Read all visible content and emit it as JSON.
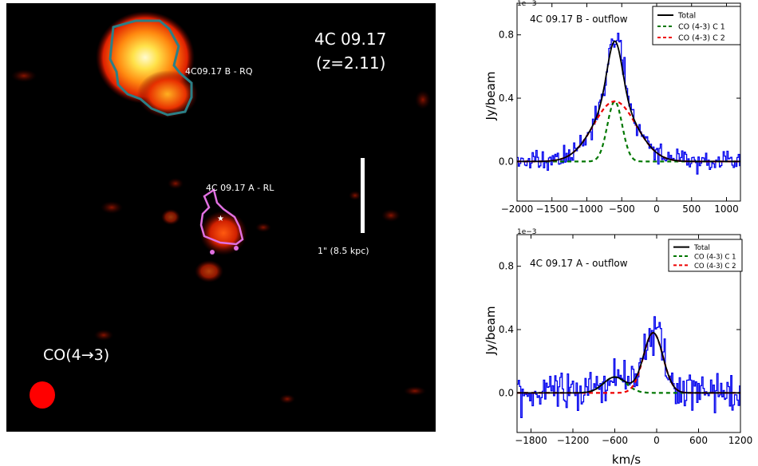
{
  "map": {
    "title_line1": "4C 09.17",
    "title_line2": "(z=2.11)",
    "label_b": "4C09.17 B - RQ",
    "label_a": "4C 09.17 A - RL",
    "scale_label": "1\" (8.5 kpc)",
    "line_label": "CO(4→3)",
    "colors": {
      "background": "#000000",
      "contour_b": "#2b7f86",
      "contour_a": "#e070e0",
      "beam": "#ff0000"
    }
  },
  "spectra": [
    {
      "panel": "top",
      "annotation": "4C 09.17 B - outflow",
      "exponent": "1e−3",
      "ylabel": "Jy/beam",
      "xlabel": "",
      "xticks": [
        "−2000",
        "−1500",
        "−1000",
        "−500",
        "0",
        "500",
        "1000"
      ],
      "yticks": [
        "0.0",
        "0.4",
        "0.8"
      ],
      "legend": [
        "Total",
        "CO (4-3) C 1",
        "CO (4-3) C 2"
      ]
    },
    {
      "panel": "bottom",
      "annotation": "4C 09.17 A - outflow",
      "exponent": "1e−3",
      "ylabel": "Jy/beam",
      "xlabel": "km/s",
      "xticks": [
        "−1800",
        "−1200",
        "−600",
        "0",
        "600",
        "1200"
      ],
      "yticks": [
        "0.0",
        "0.4",
        "0.8"
      ],
      "legend": [
        "Total",
        "CO (4-3) C 1",
        "CO (4-3) C 2"
      ]
    }
  ],
  "chart_data": [
    {
      "type": "line",
      "panel": "4C 09.17 B - outflow",
      "xlim": [
        -2000,
        1200
      ],
      "ylim": [
        -0.25,
        1.0
      ],
      "y_scale_factor": "1e-3",
      "ylabel": "Jy/beam",
      "colors": {
        "data": "#0000ee",
        "total": "#000000",
        "c1": "#007700",
        "c2": "#ee0000"
      },
      "series": [
        {
          "name": "Total",
          "components": [
            {
              "amp": 0.38,
              "center": -600,
              "fwhm": 250
            },
            {
              "amp": 0.38,
              "center": -600,
              "fwhm": 720
            }
          ]
        },
        {
          "name": "CO (4-3) C 1",
          "amp": 0.38,
          "center": -600,
          "fwhm": 250
        },
        {
          "name": "CO (4-3) C 2",
          "amp": 0.38,
          "center": -600,
          "fwhm": 720
        }
      ],
      "observed_noise": 0.04
    },
    {
      "type": "line",
      "panel": "4C 09.17 A - outflow",
      "xlim": [
        -2000,
        1200
      ],
      "ylim": [
        -0.25,
        1.0
      ],
      "y_scale_factor": "1e-3",
      "xlabel": "km/s",
      "ylabel": "Jy/beam",
      "colors": {
        "data": "#0000ee",
        "total": "#000000",
        "c1": "#007700",
        "c2": "#ee0000"
      },
      "series": [
        {
          "name": "Total",
          "components": [
            {
              "amp": 0.1,
              "center": -600,
              "fwhm": 380
            },
            {
              "amp": 0.38,
              "center": -50,
              "fwhm": 330
            }
          ]
        },
        {
          "name": "CO (4-3) C 1",
          "amp": 0.1,
          "center": -600,
          "fwhm": 380
        },
        {
          "name": "CO (4-3) C 2",
          "amp": 0.38,
          "center": -50,
          "fwhm": 330
        }
      ],
      "observed_noise": 0.07
    }
  ]
}
